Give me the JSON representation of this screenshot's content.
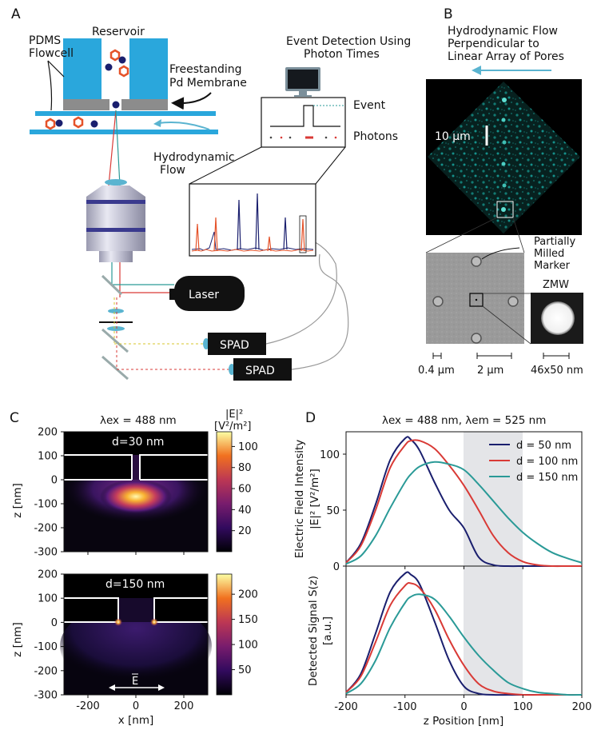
{
  "panels": {
    "A": {
      "label": "A",
      "pdms_line1": "PDMS",
      "pdms_line2": "Flowcell",
      "reservoir": "Reservoir",
      "membrane_line1": "Freestanding",
      "membrane_line2": "Pd Membrane",
      "flow_line1": "Hydrodynamic",
      "flow_line2": "Flow",
      "detect_line1": "Event Detection Using",
      "detect_line2": "Photon Times",
      "event": "Event",
      "photons": "Photons",
      "laser": "Laser",
      "spad1": "SPAD",
      "spad2": "SPAD"
    },
    "B": {
      "label": "B",
      "title_line1": "Hydrodynamic Flow",
      "title_line2": "Perpendicular to",
      "title_line3": "Linear Array of Pores",
      "scale_big": "10 µm",
      "marker_line1": "Partially",
      "marker_line2": "Milled",
      "marker_line3": "Marker",
      "zmw": "ZMW",
      "scale_a": "0.4 µm",
      "scale_b": "2 µm",
      "scale_c": "46x50 nm"
    },
    "C": {
      "label": "C",
      "title": "λex = 488 nm",
      "cb_label_line1": "|E|²",
      "cb_label_line2": "[V²/m²]",
      "top": {
        "d_label": "d=30 nm",
        "colorbar_ticks": [
          "100",
          "80",
          "60",
          "40",
          "20"
        ]
      },
      "bottom": {
        "d_label": "d=150 nm",
        "colorbar_ticks": [
          "200",
          "150",
          "100",
          "50"
        ],
        "e_label": "E"
      },
      "ylabel": "z [nm]",
      "xlabel": "x [nm]",
      "yticks": [
        "200",
        "100",
        "0",
        "-100",
        "-200",
        "-300"
      ],
      "xticks": [
        "-200",
        "0",
        "200"
      ]
    },
    "D": {
      "label": "D",
      "title": "λex = 488 nm, λem = 525 nm",
      "top_ylabel_line1": "Electric Field Intensity",
      "top_ylabel_line2": "|E|² [V²/m²]",
      "bottom_ylabel_line1": "Detected Signal S(z)",
      "bottom_ylabel_line2": "[a.u.]",
      "xlabel": "z Position [nm]",
      "top_yticks": [
        "100",
        "50",
        "0"
      ],
      "xticks": [
        "-200",
        "-100",
        "0",
        "100",
        "200"
      ]
    }
  },
  "colors": {
    "flowcell_blue": "#2aa7dc",
    "membrane_gray": "#8c8c8c",
    "navy": "#1a1f6e",
    "orange": "#e5532a",
    "teal": "#2a9a97",
    "red": "#d93a36",
    "arrow_cyan": "#5ab4d0"
  },
  "chart_data": [
    {
      "type": "line",
      "title": "λex = 488 nm, λem = 525 nm",
      "xlabel": "z Position [nm]",
      "ylabel": "Electric Field Intensity |E|² [V²/m²]",
      "xlim": [
        -200,
        200
      ],
      "ylim": [
        0,
        120
      ],
      "shaded_region": [
        0,
        100
      ],
      "legend": "top-right",
      "x": [
        -200,
        -175,
        -150,
        -125,
        -100,
        -90,
        -75,
        -50,
        -25,
        0,
        25,
        50,
        75,
        100,
        125,
        150,
        175,
        200
      ],
      "series": [
        {
          "name": "d = 50 nm",
          "color": "#1a1f6e",
          "values": [
            3,
            20,
            55,
            95,
            114,
            113,
            103,
            75,
            50,
            34,
            8,
            1,
            0,
            0,
            0,
            0,
            0,
            0
          ]
        },
        {
          "name": "d = 100 nm",
          "color": "#d93a36",
          "values": [
            3,
            18,
            50,
            88,
            108,
            112,
            112,
            105,
            90,
            72,
            50,
            27,
            12,
            4,
            1,
            0,
            0,
            0
          ]
        },
        {
          "name": "d = 150 nm",
          "color": "#2a9a97",
          "values": [
            2,
            9,
            27,
            52,
            75,
            82,
            89,
            93,
            91,
            86,
            73,
            58,
            43,
            30,
            20,
            12,
            7,
            3
          ]
        }
      ]
    },
    {
      "type": "line",
      "xlabel": "z Position [nm]",
      "ylabel": "Detected Signal S(z) [a.u.]",
      "xlim": [
        -200,
        200
      ],
      "ylim": [
        0,
        1.05
      ],
      "shaded_region": [
        0,
        100
      ],
      "x": [
        -200,
        -175,
        -150,
        -125,
        -100,
        -90,
        -75,
        -50,
        -25,
        0,
        25,
        50,
        75,
        100,
        125,
        150,
        175,
        200
      ],
      "series": [
        {
          "name": "d = 50 nm",
          "color": "#1a1f6e",
          "values": [
            0.02,
            0.17,
            0.5,
            0.84,
            0.99,
            0.98,
            0.9,
            0.6,
            0.28,
            0.07,
            0.01,
            0,
            0,
            0,
            0,
            0,
            0,
            0
          ]
        },
        {
          "name": "d = 100 nm",
          "color": "#d93a36",
          "values": [
            0.02,
            0.15,
            0.43,
            0.73,
            0.89,
            0.91,
            0.87,
            0.7,
            0.45,
            0.24,
            0.09,
            0.03,
            0.01,
            0,
            0,
            0,
            0,
            0
          ]
        },
        {
          "name": "d = 150 nm",
          "color": "#2a9a97",
          "values": [
            0.01,
            0.09,
            0.28,
            0.55,
            0.75,
            0.8,
            0.82,
            0.78,
            0.64,
            0.47,
            0.32,
            0.2,
            0.1,
            0.05,
            0.02,
            0.01,
            0,
            0
          ]
        }
      ]
    }
  ]
}
